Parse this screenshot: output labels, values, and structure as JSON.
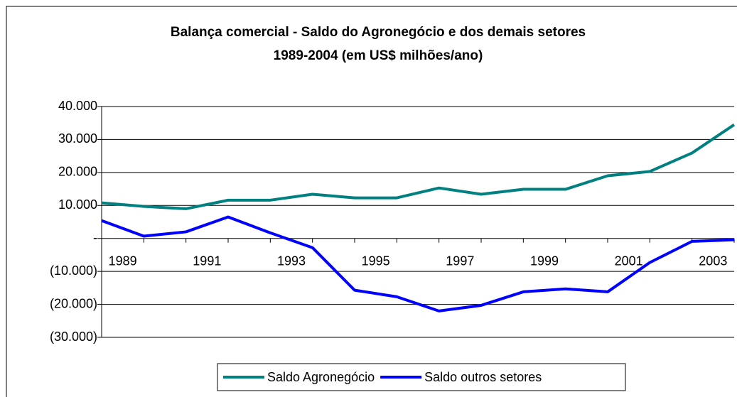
{
  "chart_data": {
    "type": "line",
    "title": "Balança comercial - Saldo do Agronegócio e dos demais setores",
    "subtitle": "1989-2004 (em US$ milhões/ano)",
    "categories": [
      "1989",
      null,
      "1991",
      null,
      "1993",
      null,
      "1995",
      null,
      "1997",
      null,
      "1999",
      null,
      "2001",
      null,
      "2003",
      null
    ],
    "series": [
      {
        "name": "Saldo Agronegócio",
        "color": "#008080",
        "values": [
          10800,
          9700,
          9000,
          11600,
          11600,
          13400,
          12300,
          12300,
          15300,
          13400,
          14900,
          14900,
          19000,
          20300,
          25900,
          34500
        ]
      },
      {
        "name": "Saldo outros setores",
        "color": "#0000ff",
        "values": [
          5400,
          700,
          2000,
          6500,
          1700,
          -2800,
          -15700,
          -17700,
          -22000,
          -20300,
          -16200,
          -15300,
          -16200,
          -7300,
          -900,
          -400
        ]
      }
    ],
    "ylim": [
      -30000,
      40000
    ],
    "yticks": [
      {
        "value": -30000,
        "label": "(30.000)"
      },
      {
        "value": -20000,
        "label": "(20.000)"
      },
      {
        "value": -10000,
        "label": "(10.000)"
      },
      {
        "value": 0,
        "label": "-"
      },
      {
        "value": 10000,
        "label": "10.000"
      },
      {
        "value": 20000,
        "label": "20.000"
      },
      {
        "value": 30000,
        "label": "30.000"
      },
      {
        "value": 40000,
        "label": "40.000"
      }
    ],
    "grid": true,
    "legend": "bottom"
  }
}
